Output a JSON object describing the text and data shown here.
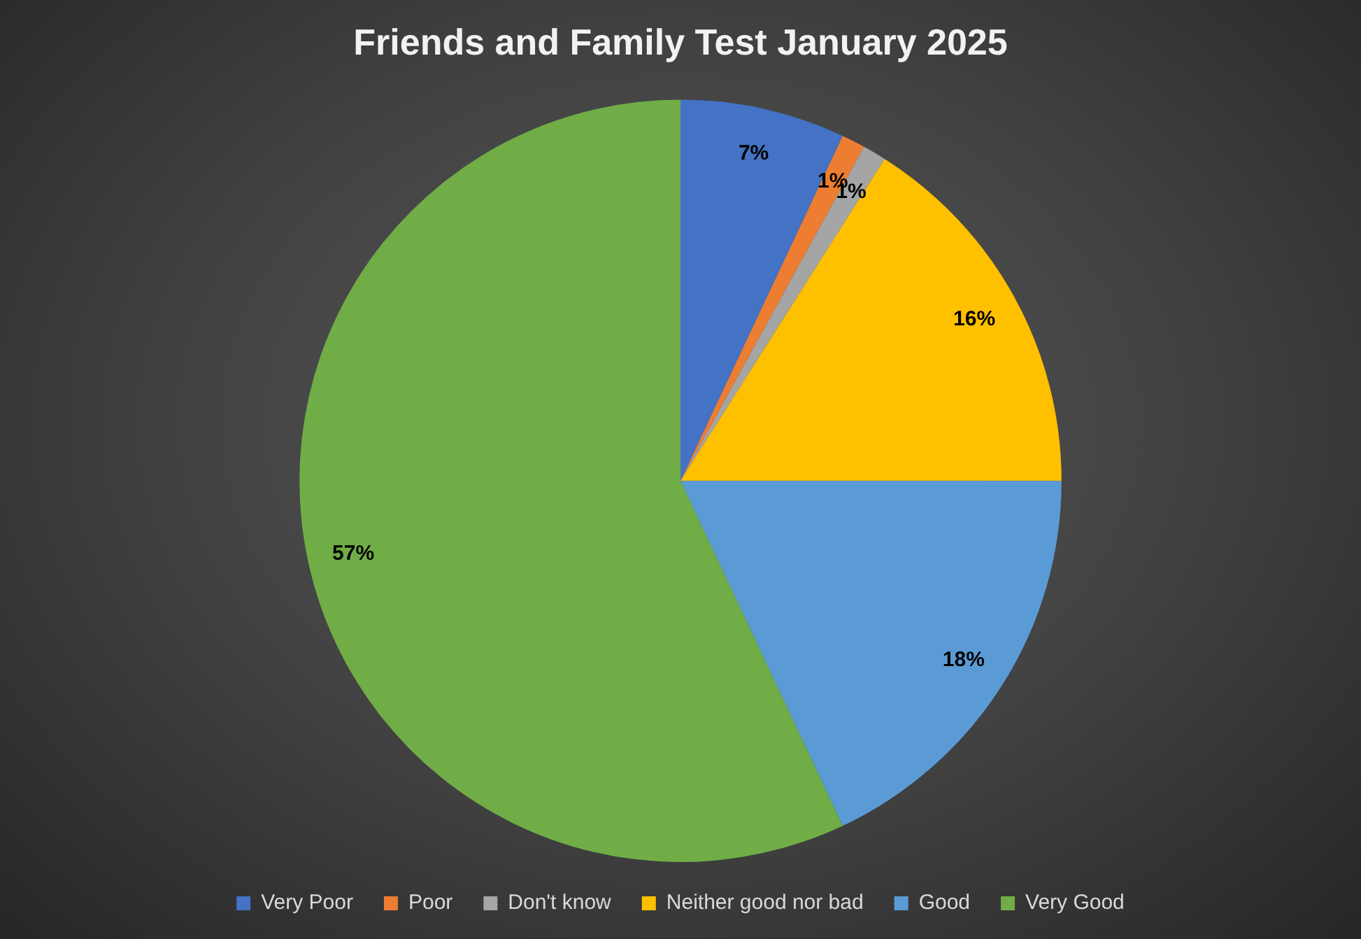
{
  "chart_data": {
    "type": "pie",
    "title": "Friends and Family Test January 2025",
    "categories": [
      "Very Poor",
      "Poor",
      "Don't know",
      "Neither good nor bad",
      "Good",
      "Very Good"
    ],
    "values": [
      7,
      1,
      1,
      16,
      18,
      57
    ],
    "colors": [
      "#4472c4",
      "#ed7d31",
      "#a5a5a5",
      "#ffc000",
      "#5b9bd5",
      "#70ad47"
    ],
    "value_labels": [
      "7%",
      "1%",
      "1%",
      "16%",
      "18%",
      "57%"
    ],
    "legend": "bottom"
  }
}
